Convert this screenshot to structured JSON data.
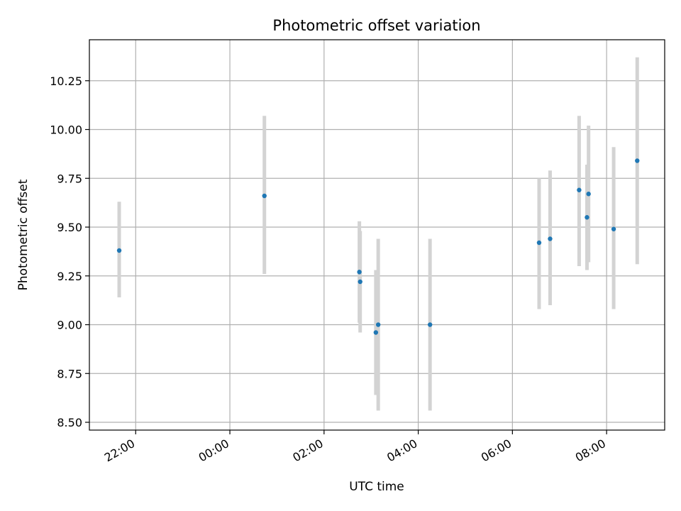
{
  "chart_data": {
    "type": "scatter",
    "title": "Photometric offset variation",
    "xlabel": "UTC time",
    "ylabel": "Photometric offset",
    "grid": true,
    "legend": "none",
    "x_unit": "UTC time (hours; times after midnight continue past 24:00)",
    "xlim": [
      "21:01",
      "33:14"
    ],
    "ylim": [
      8.46,
      10.46
    ],
    "x_ticks": [
      {
        "label": "22:00",
        "value": 22.0
      },
      {
        "label": "00:00",
        "value": 24.0
      },
      {
        "label": "02:00",
        "value": 26.0
      },
      {
        "label": "04:00",
        "value": 28.0
      },
      {
        "label": "06:00",
        "value": 30.0
      },
      {
        "label": "08:00",
        "value": 32.0
      }
    ],
    "y_ticks": [
      "8.50",
      "8.75",
      "9.00",
      "9.25",
      "9.50",
      "9.75",
      "10.00",
      "10.25"
    ],
    "colors": {
      "point": "#1f77b4",
      "errorbar": "#d3d3d3",
      "grid": "#b0b0b0"
    },
    "points": [
      {
        "x": "21:39",
        "y": 9.38,
        "y_low": 9.14,
        "y_high": 9.63
      },
      {
        "x": "00:44",
        "y": 9.66,
        "y_low": 9.26,
        "y_high": 10.07
      },
      {
        "x": "02:45",
        "y": 9.27,
        "y_low": 9.01,
        "y_high": 9.53
      },
      {
        "x": "02:46",
        "y": 9.22,
        "y_low": 8.96,
        "y_high": 9.48
      },
      {
        "x": "03:06",
        "y": 8.96,
        "y_low": 8.64,
        "y_high": 9.28
      },
      {
        "x": "03:09",
        "y": 9.0,
        "y_low": 8.56,
        "y_high": 9.44
      },
      {
        "x": "04:15",
        "y": 9.0,
        "y_low": 8.56,
        "y_high": 9.44
      },
      {
        "x": "06:34",
        "y": 9.42,
        "y_low": 9.08,
        "y_high": 9.75
      },
      {
        "x": "06:48",
        "y": 9.44,
        "y_low": 9.1,
        "y_high": 9.79
      },
      {
        "x": "07:25",
        "y": 9.69,
        "y_low": 9.3,
        "y_high": 10.07
      },
      {
        "x": "07:35",
        "y": 9.55,
        "y_low": 9.28,
        "y_high": 9.82
      },
      {
        "x": "07:37",
        "y": 9.67,
        "y_low": 9.32,
        "y_high": 10.02
      },
      {
        "x": "08:09",
        "y": 9.49,
        "y_low": 9.08,
        "y_high": 9.91
      },
      {
        "x": "08:39",
        "y": 9.84,
        "y_low": 9.31,
        "y_high": 10.37
      }
    ]
  }
}
